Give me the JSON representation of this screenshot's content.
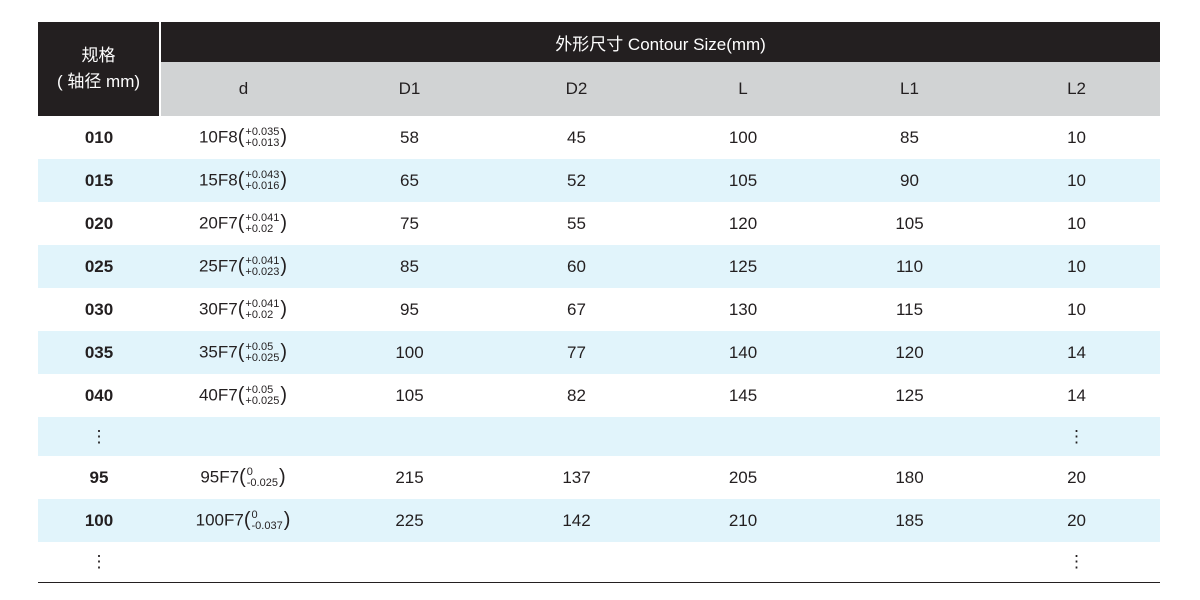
{
  "header": {
    "spec_line1": "规格",
    "spec_line2": "( 轴径 mm)",
    "group_title": "外形尺寸 Contour Size(mm)",
    "columns": [
      "d",
      "D1",
      "D2",
      "L",
      "L1",
      "L2"
    ]
  },
  "colors": {
    "header_bg": "#231f20",
    "subheader_bg": "#d1d3d4",
    "alt_row_bg": "#e1f4fb"
  },
  "rows": [
    {
      "spec": "010",
      "d": "10F8",
      "tol_upper": "+0.035",
      "tol_lower": "+0.013",
      "D1": "58",
      "D2": "45",
      "L": "100",
      "L1": "85",
      "L2": "10"
    },
    {
      "spec": "015",
      "d": "15F8",
      "tol_upper": "+0.043",
      "tol_lower": "+0.016",
      "D1": "65",
      "D2": "52",
      "L": "105",
      "L1": "90",
      "L2": "10"
    },
    {
      "spec": "020",
      "d": "20F7",
      "tol_upper": "+0.041",
      "tol_lower": "+0.02",
      "D1": "75",
      "D2": "55",
      "L": "120",
      "L1": "105",
      "L2": "10"
    },
    {
      "spec": "025",
      "d": "25F7",
      "tol_upper": "+0.041",
      "tol_lower": "+0.023",
      "D1": "85",
      "D2": "60",
      "L": "125",
      "L1": "110",
      "L2": "10"
    },
    {
      "spec": "030",
      "d": "30F7",
      "tol_upper": "+0.041",
      "tol_lower": "+0.02",
      "D1": "95",
      "D2": "67",
      "L": "130",
      "L1": "115",
      "L2": "10"
    },
    {
      "spec": "035",
      "d": "35F7",
      "tol_upper": "+0.05",
      "tol_lower": "+0.025",
      "D1": "100",
      "D2": "77",
      "L": "140",
      "L1": "120",
      "L2": "14"
    },
    {
      "spec": "040",
      "d": "40F7",
      "tol_upper": "+0.05",
      "tol_lower": "+0.025",
      "D1": "105",
      "D2": "82",
      "L": "145",
      "L1": "125",
      "L2": "14"
    },
    {
      "ellipsis": "⋮"
    },
    {
      "spec": "95",
      "d": "95F7",
      "tol_upper": "0",
      "tol_lower": "-0.025",
      "D1": "215",
      "D2": "137",
      "L": "205",
      "L1": "180",
      "L2": "20"
    },
    {
      "spec": "100",
      "d": "100F7",
      "tol_upper": "0",
      "tol_lower": "-0.037",
      "D1": "225",
      "D2": "142",
      "L": "210",
      "L1": "185",
      "L2": "20"
    },
    {
      "ellipsis": "⋮"
    }
  ]
}
